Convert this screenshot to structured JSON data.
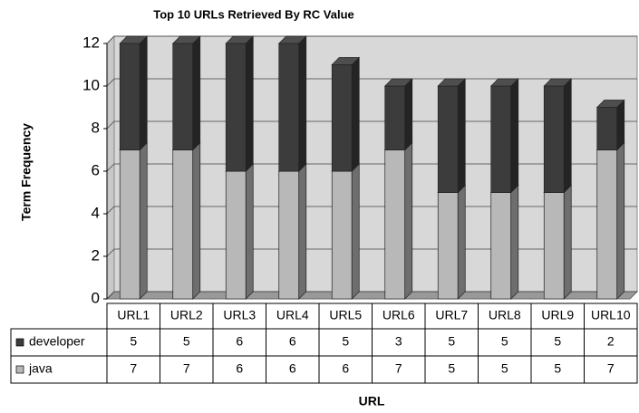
{
  "chart_data": {
    "type": "bar",
    "stacked": true,
    "title": "Top 10 URLs Retrieved By RC Value",
    "y_label": "Term Frequency",
    "x_label": "URL",
    "categories": [
      "URL1",
      "URL2",
      "URL3",
      "URL4",
      "URL5",
      "URL6",
      "URL7",
      "URL8",
      "URL9",
      "URL10"
    ],
    "series": [
      {
        "name": "java",
        "color": "#b8b8b8",
        "values": [
          7,
          7,
          6,
          6,
          6,
          7,
          5,
          5,
          5,
          7
        ]
      },
      {
        "name": "developer",
        "color": "#3c3c3c",
        "values": [
          5,
          5,
          6,
          6,
          5,
          3,
          5,
          5,
          5,
          2
        ]
      }
    ],
    "ylim": [
      0,
      12
    ],
    "yticks": [
      0,
      2,
      4,
      6,
      8,
      10,
      12
    ],
    "grid": true,
    "data_table": true
  }
}
